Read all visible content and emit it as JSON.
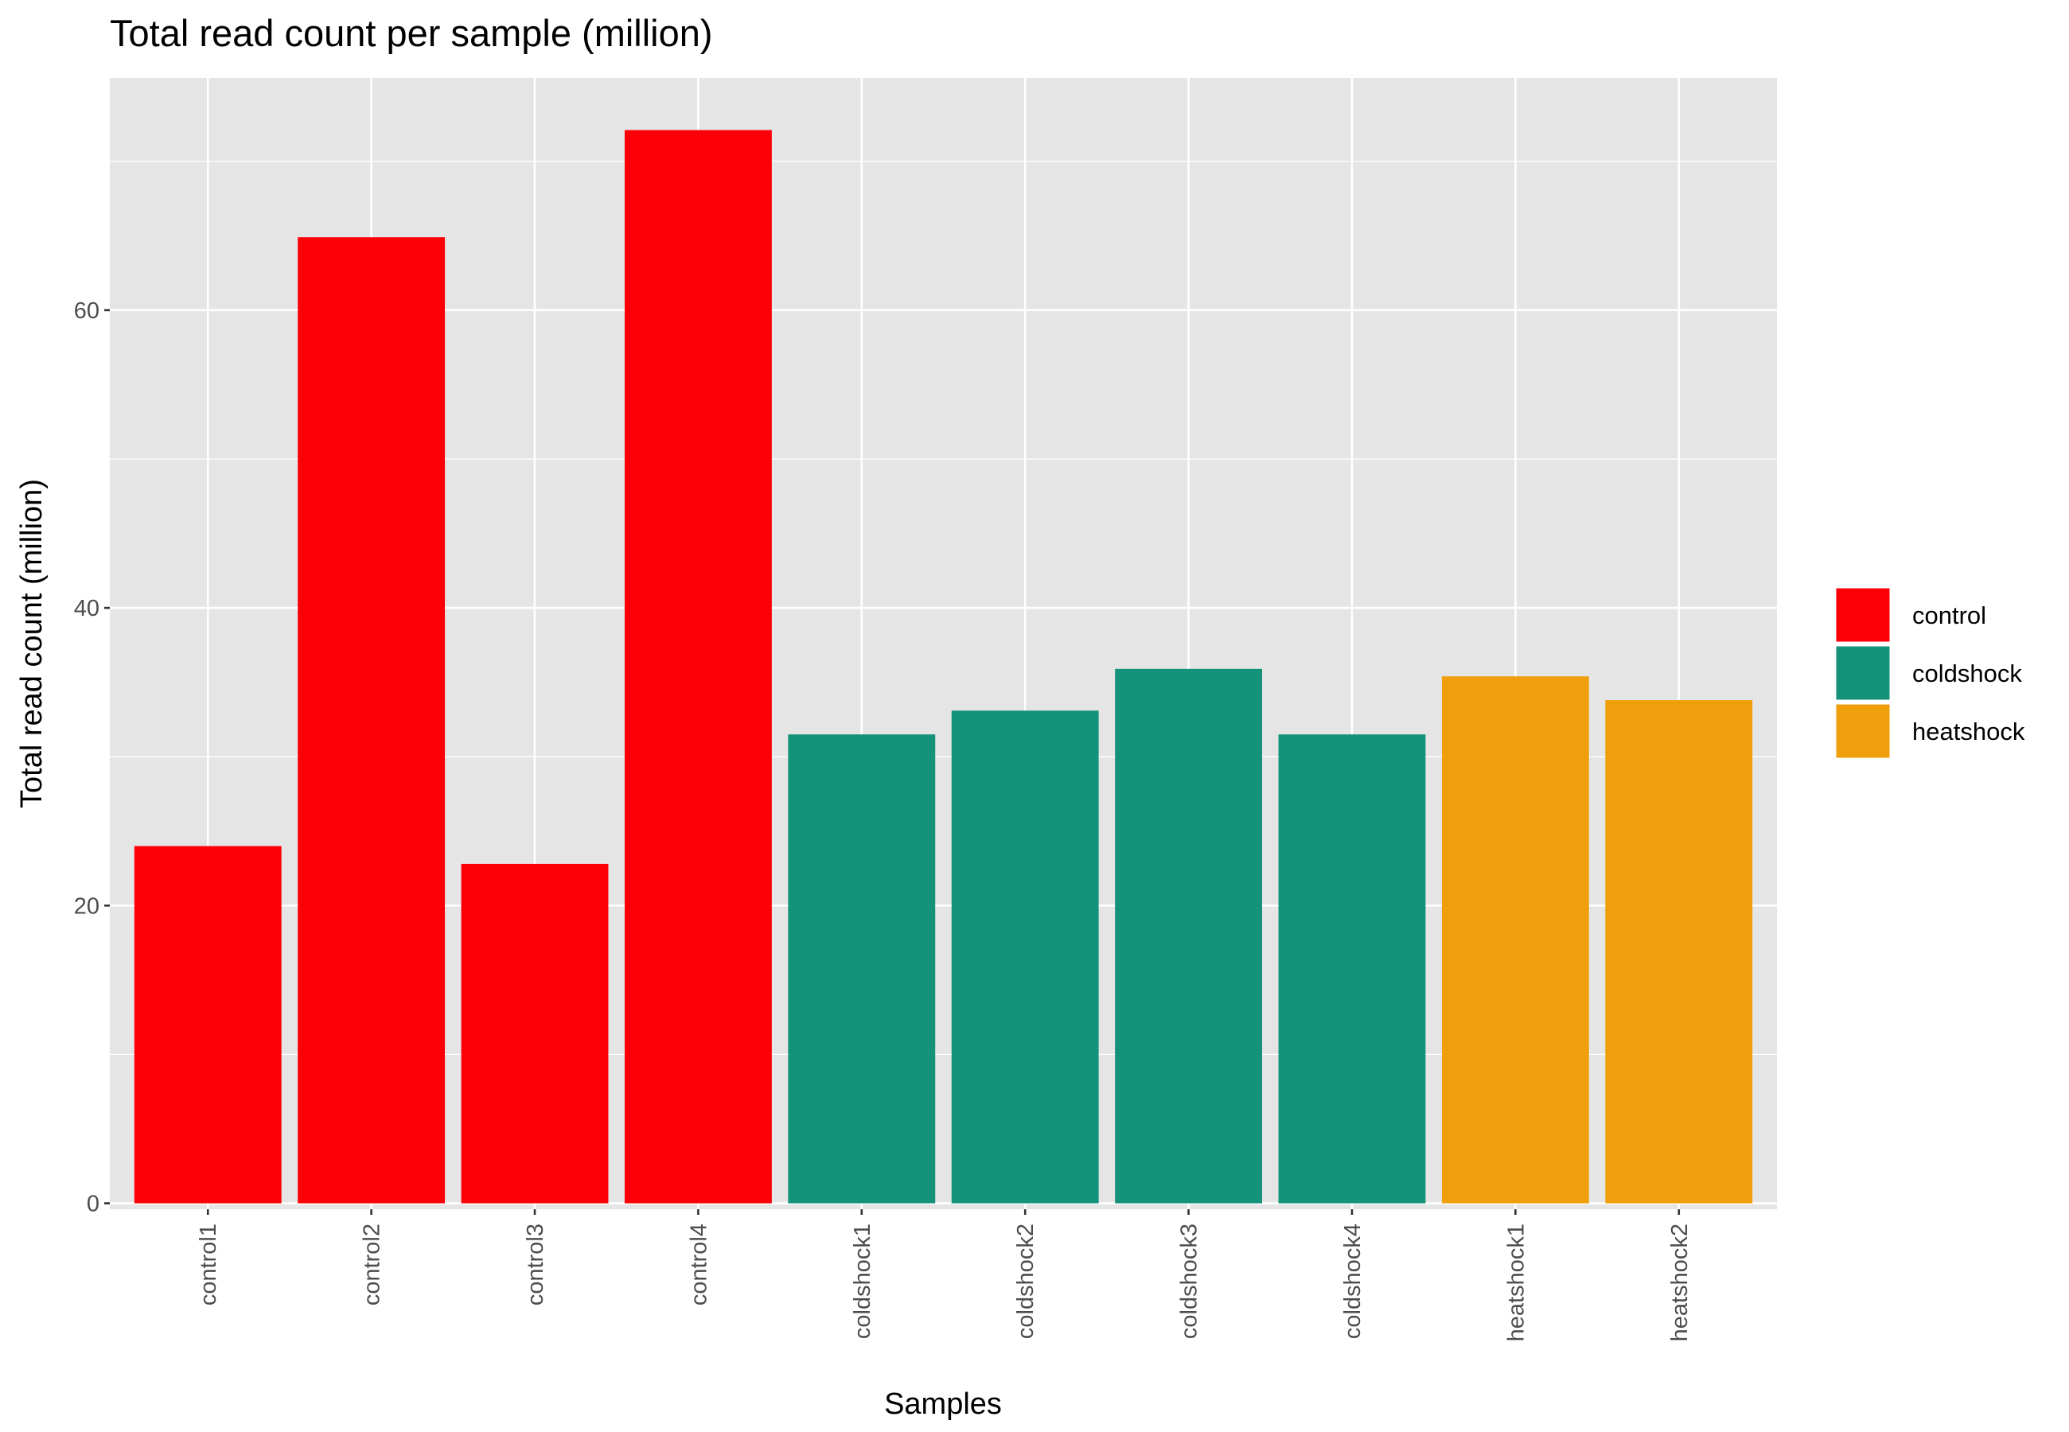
{
  "chart_data": {
    "type": "bar",
    "title": "Total read count per sample (million)",
    "xlabel": "Samples",
    "ylabel": "Total read count (million)",
    "categories": [
      "control1",
      "control2",
      "control3",
      "control4",
      "coldshock1",
      "coldshock2",
      "coldshock3",
      "coldshock4",
      "heatshock1",
      "heatshock2"
    ],
    "values": [
      24.0,
      64.9,
      22.8,
      72.1,
      31.5,
      33.1,
      35.9,
      31.5,
      35.4,
      33.8
    ],
    "groups": [
      "control",
      "control",
      "control",
      "control",
      "coldshock",
      "coldshock",
      "coldshock",
      "coldshock",
      "heatshock",
      "heatshock"
    ],
    "yticks": [
      0,
      20,
      40,
      60
    ],
    "ylim": [
      -0.4,
      75.6
    ],
    "grid": true,
    "legend": {
      "placement": "right",
      "entries": [
        {
          "name": "control",
          "color": "#fc0007"
        },
        {
          "name": "coldshock",
          "color": "#14937a"
        },
        {
          "name": "heatshock",
          "color": "#ee9f0b"
        }
      ]
    },
    "colors": {
      "panel_background": "#e5e5e5",
      "grid": "#ffffff",
      "tick_text": "#4d4d4d"
    }
  }
}
